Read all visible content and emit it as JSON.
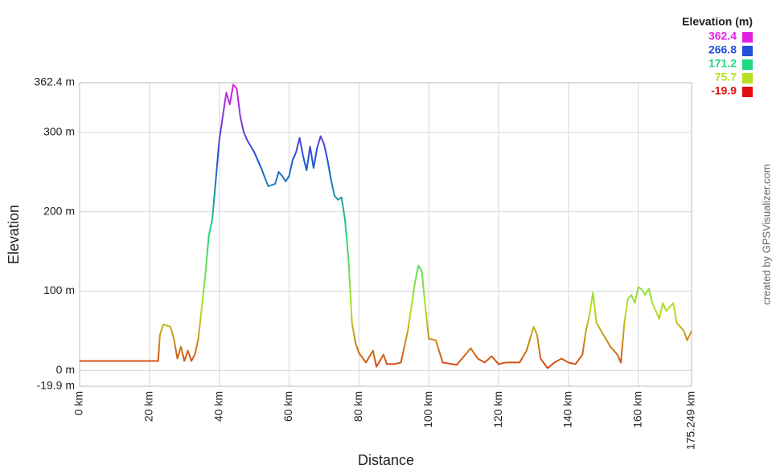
{
  "chart_data": {
    "type": "line",
    "xlabel": "Distance",
    "ylabel": "Elevation",
    "credit": "created by GPSVisualizer.com",
    "xlim": [
      0,
      175.249
    ],
    "ylim": [
      -19.9,
      362.4
    ],
    "xticks": [
      {
        "value": 0,
        "label": "0 km"
      },
      {
        "value": 20,
        "label": "20 km"
      },
      {
        "value": 40,
        "label": "40 km"
      },
      {
        "value": 60,
        "label": "60 km"
      },
      {
        "value": 80,
        "label": "80 km"
      },
      {
        "value": 100,
        "label": "100 km"
      },
      {
        "value": 120,
        "label": "120 km"
      },
      {
        "value": 140,
        "label": "140 km"
      },
      {
        "value": 160,
        "label": "160 km"
      },
      {
        "value": 175.249,
        "label": "175.249 km"
      }
    ],
    "yticks": [
      {
        "value": -19.9,
        "label": "-19.9 m"
      },
      {
        "value": 0,
        "label": "0 m"
      },
      {
        "value": 100,
        "label": "100 m"
      },
      {
        "value": 200,
        "label": "200 m"
      },
      {
        "value": 300,
        "label": "300 m"
      },
      {
        "value": 362.4,
        "label": "362.4 m"
      }
    ],
    "grid": true,
    "color_scale": {
      "title": "Elevation (m)",
      "stops": [
        {
          "value": 362.4,
          "color": "#e020e0"
        },
        {
          "value": 266.8,
          "color": "#2050d8"
        },
        {
          "value": 171.2,
          "color": "#20d880"
        },
        {
          "value": 75.7,
          "color": "#b8e020"
        },
        {
          "value": -19.9,
          "color": "#e01010"
        }
      ]
    },
    "x": [
      0,
      22.5,
      23,
      24,
      26,
      27,
      28,
      29,
      30,
      31,
      32,
      33,
      34,
      35,
      36,
      37,
      38,
      39,
      40,
      41,
      42,
      43,
      44,
      45,
      46,
      47,
      48,
      50,
      52,
      54,
      56,
      57,
      58,
      59,
      60,
      61,
      62,
      63,
      64,
      65,
      66,
      67,
      68,
      69,
      70,
      71,
      72,
      73,
      74,
      75,
      76,
      77,
      78,
      79,
      80,
      82,
      84,
      85,
      86,
      87,
      88,
      90,
      92,
      94,
      96,
      97,
      98,
      99,
      100,
      102,
      104,
      108,
      112,
      114,
      116,
      118,
      120,
      122,
      124,
      126,
      128,
      130,
      131,
      132,
      134,
      136,
      138,
      140,
      142,
      144,
      145,
      146,
      147,
      148,
      150,
      152,
      154,
      155,
      156,
      157,
      158,
      159,
      160,
      161,
      162,
      163,
      164,
      165,
      166,
      167,
      168,
      170,
      171,
      172,
      173,
      174,
      175.249
    ],
    "values": [
      12,
      12,
      45,
      58,
      55,
      40,
      15,
      30,
      12,
      25,
      12,
      20,
      40,
      80,
      120,
      170,
      190,
      240,
      290,
      320,
      350,
      335,
      360,
      355,
      320,
      300,
      290,
      275,
      255,
      232,
      235,
      250,
      245,
      238,
      245,
      265,
      275,
      293,
      270,
      252,
      282,
      255,
      280,
      295,
      285,
      265,
      240,
      220,
      215,
      218,
      190,
      140,
      60,
      35,
      22,
      10,
      25,
      5,
      12,
      20,
      8,
      8,
      10,
      50,
      110,
      132,
      125,
      80,
      40,
      38,
      10,
      7,
      28,
      15,
      10,
      18,
      8,
      10,
      10,
      10,
      25,
      55,
      45,
      15,
      3,
      10,
      15,
      10,
      8,
      20,
      50,
      70,
      98,
      60,
      45,
      30,
      20,
      10,
      60,
      90,
      95,
      85,
      105,
      102,
      95,
      103,
      85,
      75,
      65,
      85,
      75,
      85,
      60,
      55,
      50,
      38,
      50
    ]
  }
}
